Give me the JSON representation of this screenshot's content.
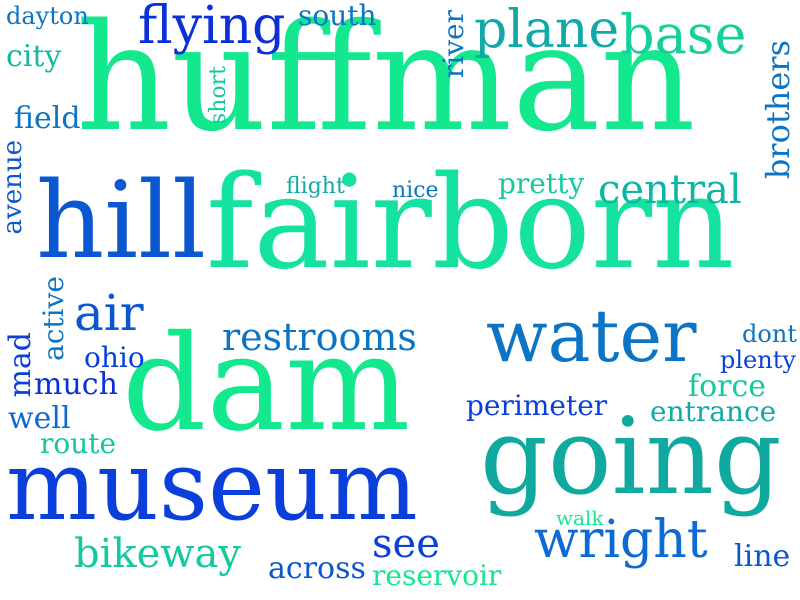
{
  "colors": {
    "mint": "#13e88f",
    "teal": "#10a99f",
    "sea": "#12c9a0",
    "blue": "#0a3fdc",
    "azure": "#0c74c4",
    "cobalt": "#0b57d0"
  },
  "words": [
    {
      "id": "huffman",
      "text": "huffman",
      "color": "#13e88f"
    },
    {
      "id": "fairborn",
      "text": "fairborn",
      "color": "#15e2a0"
    },
    {
      "id": "dam",
      "text": "dam",
      "color": "#13e88f"
    },
    {
      "id": "going",
      "text": "going",
      "color": "#10a99f"
    },
    {
      "id": "museum",
      "text": "museum",
      "color": "#0a3fdc"
    },
    {
      "id": "hill",
      "text": "hill",
      "color": "#0b57d0"
    },
    {
      "id": "water",
      "text": "water",
      "color": "#0c74c4"
    },
    {
      "id": "wright",
      "text": "wright",
      "color": "#0c6ad4"
    },
    {
      "id": "plane",
      "text": "plane",
      "color": "#10a9a8"
    },
    {
      "id": "base",
      "text": "base",
      "color": "#13d19a"
    },
    {
      "id": "flying",
      "text": "flying",
      "color": "#0b2fd8"
    },
    {
      "id": "central",
      "text": "central",
      "color": "#0fb5a4"
    },
    {
      "id": "air",
      "text": "air",
      "color": "#0b57d0"
    },
    {
      "id": "restrooms",
      "text": "restrooms",
      "color": "#0c74c4"
    },
    {
      "id": "bikeway",
      "text": "bikeway",
      "color": "#12c9a0"
    },
    {
      "id": "see",
      "text": "see",
      "color": "#0a3fdc"
    },
    {
      "id": "museum-area",
      "text": "perimeter",
      "color": "#0a3fdc"
    },
    {
      "id": "entrance",
      "text": "entrance",
      "color": "#10a9a8"
    },
    {
      "id": "pretty",
      "text": "pretty",
      "color": "#12c9a0"
    },
    {
      "id": "south",
      "text": "south",
      "color": "#0c74c4"
    },
    {
      "id": "dayton",
      "text": "dayton",
      "color": "#0c74c4"
    },
    {
      "id": "city",
      "text": "city",
      "color": "#12b9a0"
    },
    {
      "id": "field",
      "text": "field",
      "color": "#0c74c4"
    },
    {
      "id": "ohio",
      "text": "ohio",
      "color": "#0a3fdc"
    },
    {
      "id": "much",
      "text": "much",
      "color": "#0b2fd8"
    },
    {
      "id": "well",
      "text": "well",
      "color": "#0c6ad4"
    },
    {
      "id": "route",
      "text": "route",
      "color": "#12c9a0"
    },
    {
      "id": "across",
      "text": "across",
      "color": "#0b57d0"
    },
    {
      "id": "reservoir",
      "text": "reservoir",
      "color": "#13e88f"
    },
    {
      "id": "line",
      "text": "line",
      "color": "#0b57d0"
    },
    {
      "id": "walk",
      "text": "walk",
      "color": "#13e88f"
    },
    {
      "id": "force",
      "text": "force",
      "color": "#12c9a0"
    },
    {
      "id": "plenty",
      "text": "plenty",
      "color": "#0a3fdc"
    },
    {
      "id": "dont",
      "text": "dont",
      "color": "#0c74c4"
    },
    {
      "id": "flight",
      "text": "flight",
      "color": "#10a9a8"
    },
    {
      "id": "nice",
      "text": "nice",
      "color": "#0c74c4"
    },
    {
      "id": "short",
      "text": "short",
      "color": "#12c9a0"
    },
    {
      "id": "river",
      "text": "river",
      "color": "#0c74c4"
    },
    {
      "id": "brothers",
      "text": "brothers",
      "color": "#0c74c4"
    },
    {
      "id": "avenue",
      "text": "avenue",
      "color": "#0b57d0"
    },
    {
      "id": "active",
      "text": "active",
      "color": "#0c74c4"
    },
    {
      "id": "mad",
      "text": "mad",
      "color": "#0a3fdc"
    }
  ]
}
